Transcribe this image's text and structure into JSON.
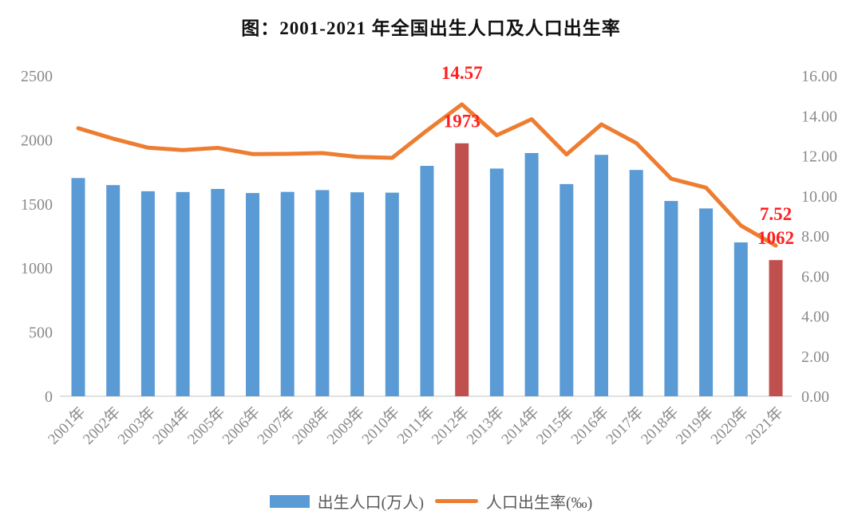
{
  "page": {
    "background": "#ffffff"
  },
  "chart": {
    "title": "图：2001-2021 年全国出生人口及人口出生率",
    "legend": {
      "bar_label": "出生人口(万人)",
      "line_label": "人口出生率(‰)"
    }
  },
  "chart_data": {
    "type": "bar+line combo",
    "title": "图：2001-2021 年全国出生人口及人口出生率",
    "categories": [
      "2001年",
      "2002年",
      "2003年",
      "2004年",
      "2005年",
      "2006年",
      "2007年",
      "2008年",
      "2009年",
      "2010年",
      "2011年",
      "2012年",
      "2013年",
      "2014年",
      "2015年",
      "2016年",
      "2017年",
      "2018年",
      "2019年",
      "2020年",
      "2021年"
    ],
    "series": [
      {
        "name": "出生人口(万人)",
        "type": "bar",
        "axis": "left",
        "values": [
          1702,
          1647,
          1599,
          1593,
          1617,
          1585,
          1594,
          1608,
          1591,
          1588,
          1797,
          1973,
          1776,
          1897,
          1655,
          1883,
          1765,
          1523,
          1465,
          1200,
          1062
        ],
        "color": "#5B9BD5",
        "highlight": {
          "indices": [
            11,
            20
          ],
          "color": "#C0504D"
        }
      },
      {
        "name": "人口出生率(‰)",
        "type": "line",
        "axis": "right",
        "values": [
          13.38,
          12.86,
          12.41,
          12.29,
          12.4,
          12.09,
          12.1,
          12.14,
          11.95,
          11.9,
          13.27,
          14.57,
          13.03,
          13.83,
          12.07,
          13.57,
          12.64,
          10.86,
          10.41,
          8.52,
          7.52
        ],
        "color": "#ED7D31"
      }
    ],
    "left_axis": {
      "min": 0,
      "max": 2500,
      "step": 500,
      "ticks": [
        "0",
        "500",
        "1000",
        "1500",
        "2000",
        "2500"
      ]
    },
    "right_axis": {
      "min": 0,
      "max": 16,
      "step": 2,
      "ticks": [
        "0.00",
        "2.00",
        "4.00",
        "6.00",
        "8.00",
        "10.00",
        "12.00",
        "14.00",
        "16.00"
      ]
    },
    "annotations": [
      {
        "target": "line",
        "index": 11,
        "text": "14.57"
      },
      {
        "target": "bar",
        "index": 11,
        "text": "1973"
      },
      {
        "target": "line",
        "index": 20,
        "text": "7.52"
      },
      {
        "target": "bar",
        "index": 20,
        "text": "1062"
      }
    ],
    "grid": false,
    "legend_position": "bottom",
    "colors": {
      "bar": "#5B9BD5",
      "bar_highlight": "#C0504D",
      "line": "#ED7D31",
      "annotation_text": "#FF1F1F",
      "axis_text": "#8a8a8a",
      "axis_line": "#d6d6d6",
      "title_text": "#111111",
      "legend_text": "#595959"
    }
  }
}
